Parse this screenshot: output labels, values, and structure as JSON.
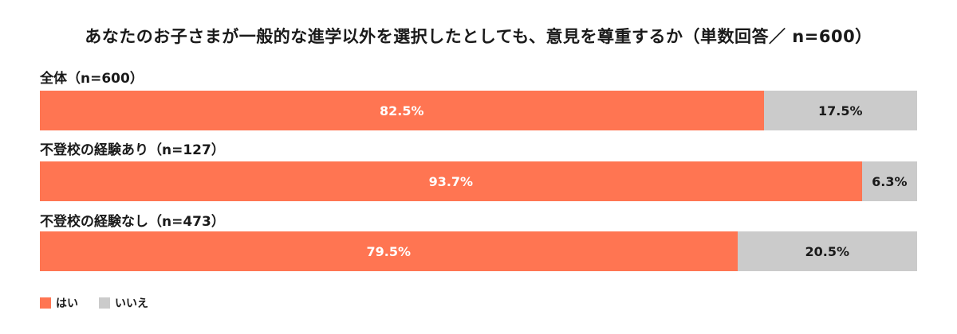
{
  "chart_data": {
    "type": "bar",
    "orientation": "horizontal",
    "stacked": true,
    "normalized_percent": true,
    "title": "あなたのお子さまが一般的な進学以外を選択したとしても、意見を尊重するか（単数回答／ n=600）",
    "categories": [
      "全体（n=600）",
      "不登校の経験あり（n=127）",
      "不登校の経験なし（n=473）"
    ],
    "series": [
      {
        "name": "はい",
        "color": "#ff7552",
        "values": [
          82.5,
          93.7,
          79.5
        ],
        "labels": [
          "82.5%",
          "93.7%",
          "79.5%"
        ]
      },
      {
        "name": "いいえ",
        "color": "#cbcbcb",
        "values": [
          17.5,
          6.3,
          20.5
        ],
        "labels": [
          "17.5%",
          "6.3%",
          "20.5%"
        ]
      }
    ],
    "xlim": [
      0,
      100
    ],
    "grid": false,
    "legend_position": "bottom-left"
  }
}
